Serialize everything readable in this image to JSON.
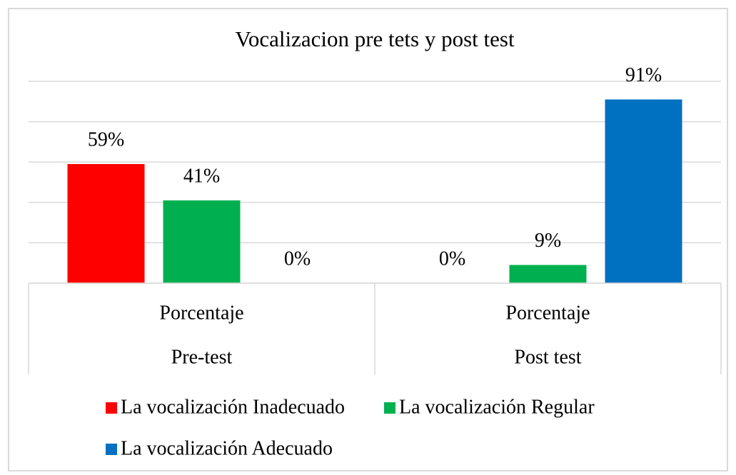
{
  "chart_data": {
    "type": "bar",
    "title": "Vocalizacion pre tets y post test",
    "categories": [
      "Pre-test",
      "Post test"
    ],
    "subcategories": [
      "Porcentaje",
      "Porcentaje"
    ],
    "series": [
      {
        "name": "La vocalización Inadecuado",
        "color": "#ff0000",
        "values": [
          59,
          0
        ],
        "value_labels": [
          "59%",
          "0%"
        ]
      },
      {
        "name": "La vocalización Regular",
        "color": "#00b050",
        "values": [
          41,
          9
        ],
        "value_labels": [
          "41%",
          "9%"
        ]
      },
      {
        "name": "La vocalización Adecuado",
        "color": "#0070c0",
        "values": [
          0,
          91
        ],
        "value_labels": [
          "0%",
          "91%"
        ]
      }
    ],
    "ylim": [
      0,
      100
    ],
    "yticks": [
      0,
      20,
      40,
      60,
      80,
      100
    ],
    "grid": true,
    "legend": "bottom"
  }
}
